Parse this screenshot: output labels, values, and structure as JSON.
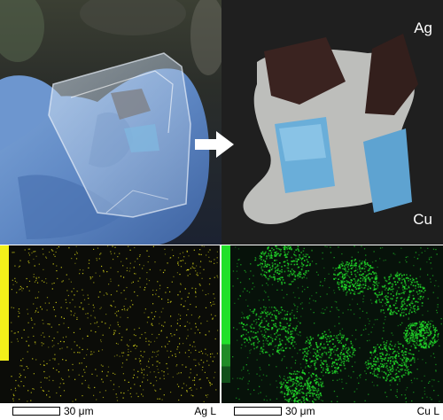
{
  "photo_right": {
    "label_top": "Ag",
    "label_bottom": "Cu"
  },
  "eds_left": {
    "element_label": "Ag L",
    "scale_label": "30 μm",
    "color": "#f2f01a"
  },
  "eds_right": {
    "element_label": "Cu L",
    "scale_label": "30 μm",
    "color": "#22e02a"
  },
  "arrow": {
    "direction": "right",
    "color": "#ffffff"
  }
}
